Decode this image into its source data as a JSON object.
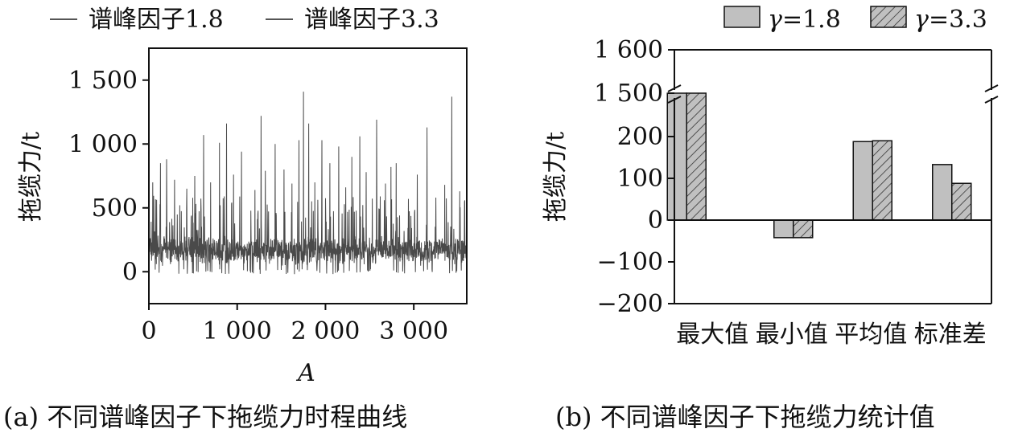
{
  "chart_data": [
    {
      "type": "line",
      "legend": [
        "谱峰因子1.8",
        "谱峰因子3.3"
      ],
      "legend_placement": "top",
      "xlabel": "A",
      "ylabel": "拖缆力/t",
      "xlim": [
        0,
        3600
      ],
      "ylim": [
        -250,
        1750
      ],
      "xticks": [
        "0",
        "1 000",
        "2 000",
        "3 000"
      ],
      "xtick_values": [
        0,
        1000,
        2000,
        3000
      ],
      "yticks": [
        "0",
        "500",
        "1 000",
        "1 500"
      ],
      "ytick_values": [
        0,
        500,
        1000,
        1500
      ],
      "series_color": "#4a4a4a",
      "baseline_mean": 165,
      "peaks": [
        {
          "x": 45,
          "y": 700
        },
        {
          "x": 130,
          "y": 850
        },
        {
          "x": 200,
          "y": 880
        },
        {
          "x": 290,
          "y": 720
        },
        {
          "x": 430,
          "y": 650
        },
        {
          "x": 520,
          "y": 750
        },
        {
          "x": 620,
          "y": 1070
        },
        {
          "x": 700,
          "y": 700
        },
        {
          "x": 800,
          "y": 1010
        },
        {
          "x": 880,
          "y": 1160
        },
        {
          "x": 960,
          "y": 760
        },
        {
          "x": 1050,
          "y": 940
        },
        {
          "x": 1200,
          "y": 640
        },
        {
          "x": 1270,
          "y": 1220
        },
        {
          "x": 1320,
          "y": 790
        },
        {
          "x": 1430,
          "y": 1000
        },
        {
          "x": 1530,
          "y": 800
        },
        {
          "x": 1620,
          "y": 690
        },
        {
          "x": 1700,
          "y": 1030
        },
        {
          "x": 1750,
          "y": 1410
        },
        {
          "x": 1810,
          "y": 1160
        },
        {
          "x": 1880,
          "y": 700
        },
        {
          "x": 1960,
          "y": 1030
        },
        {
          "x": 2050,
          "y": 850
        },
        {
          "x": 2150,
          "y": 980
        },
        {
          "x": 2230,
          "y": 660
        },
        {
          "x": 2300,
          "y": 900
        },
        {
          "x": 2390,
          "y": 1060
        },
        {
          "x": 2460,
          "y": 780
        },
        {
          "x": 2580,
          "y": 1190
        },
        {
          "x": 2680,
          "y": 690
        },
        {
          "x": 2740,
          "y": 820
        },
        {
          "x": 2800,
          "y": 850
        },
        {
          "x": 2940,
          "y": 570
        },
        {
          "x": 3040,
          "y": 760
        },
        {
          "x": 3150,
          "y": 1130
        },
        {
          "x": 3250,
          "y": 580
        },
        {
          "x": 3350,
          "y": 680
        },
        {
          "x": 3430,
          "y": 1370
        },
        {
          "x": 3520,
          "y": 630
        }
      ],
      "caption": "(a) 不同谱峰因子下拖缆力时程曲线"
    },
    {
      "type": "bar",
      "categories": [
        "最大值",
        "最小值",
        "平均值",
        "标准差"
      ],
      "series": [
        {
          "name_prefix": "γ",
          "name_suffix": "=1.8",
          "values": [
            1490,
            -42,
            188,
            133
          ],
          "color": "#c0c0c0",
          "hatch": false
        },
        {
          "name_prefix": "γ",
          "name_suffix": "=3.3",
          "values": [
            1490,
            -42,
            190,
            88
          ],
          "color": "#c0c0c0",
          "hatch": true
        }
      ],
      "ylabel": "拖缆力/t",
      "ylim": [
        -200,
        1600
      ],
      "axis_break": [
        300,
        1400
      ],
      "yticks": [
        "1 600",
        "1 500",
        "200",
        "100",
        "0",
        "−100",
        "−200"
      ],
      "ytick_values": [
        1600,
        1500,
        200,
        100,
        0,
        -100,
        -200
      ],
      "legend_placement": "top",
      "caption": "(b) 不同谱峰因子下拖缆力统计值"
    }
  ]
}
